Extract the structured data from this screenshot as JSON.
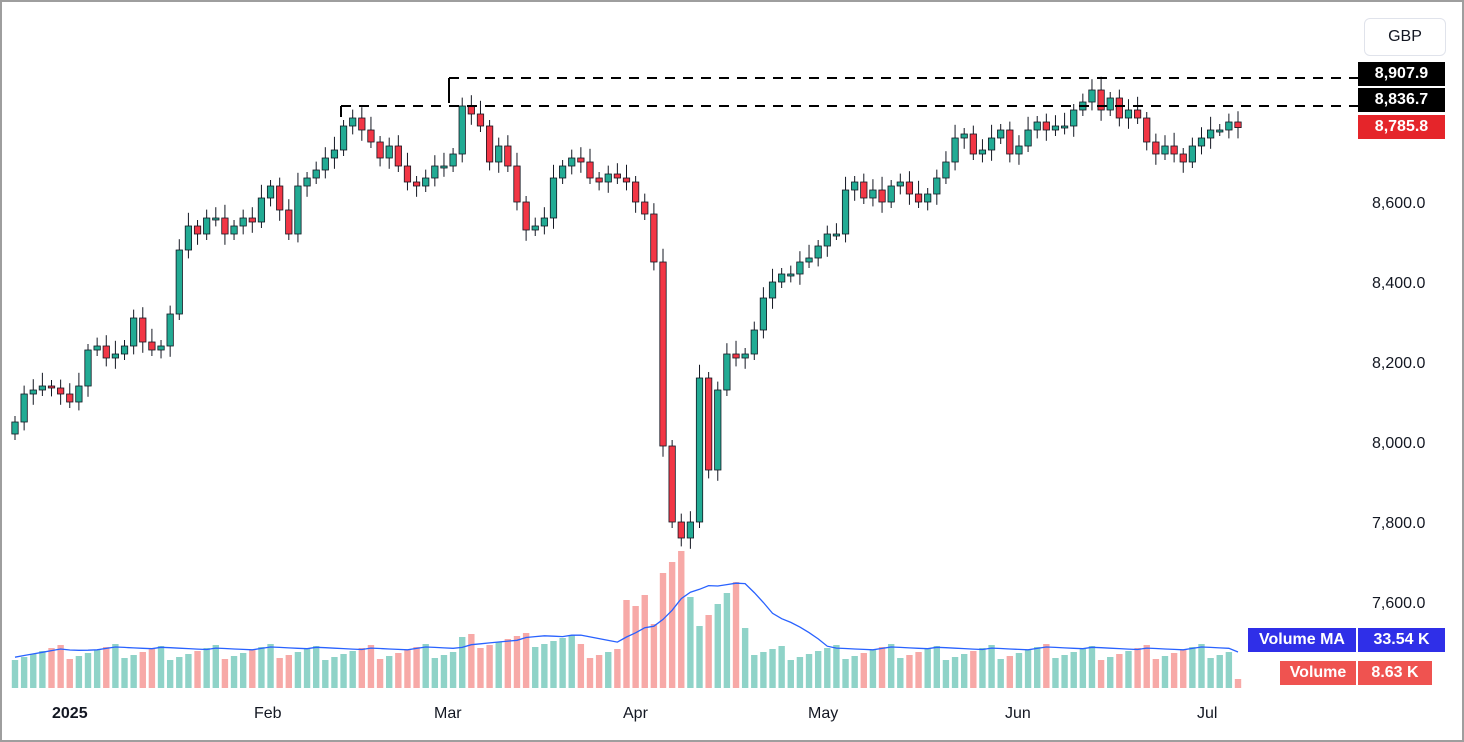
{
  "currency": "GBP",
  "colors": {
    "up": "#22ab94",
    "down": "#f23645",
    "up_volume": "#8fd3c8",
    "down_volume": "#f7a9a7",
    "volume_ma": "#2962ff",
    "dashed": "#000000"
  },
  "price_levels": {
    "high_line": "8,907.9",
    "low_line": "8,836.7",
    "last_price": "8,785.8"
  },
  "volume_panel": {
    "ma_label": "Volume MA",
    "ma_value": "33.54 K",
    "volume_label": "Volume",
    "volume_value": "8.63 K"
  },
  "chart_data": {
    "type": "candlestick",
    "y_ticks": [
      "8,600.0",
      "8,400.0",
      "8,200.0",
      "8,000.0",
      "7,800.0",
      "7,600.0"
    ],
    "x_ticks": [
      "2025",
      "Feb",
      "Mar",
      "Apr",
      "May",
      "Jun",
      "Jul"
    ],
    "reference_lines": [
      8907.9,
      8836.7
    ],
    "last_price": 8785.8,
    "volume_ma_last": "33.54K",
    "volume_last": "8.63K"
  }
}
